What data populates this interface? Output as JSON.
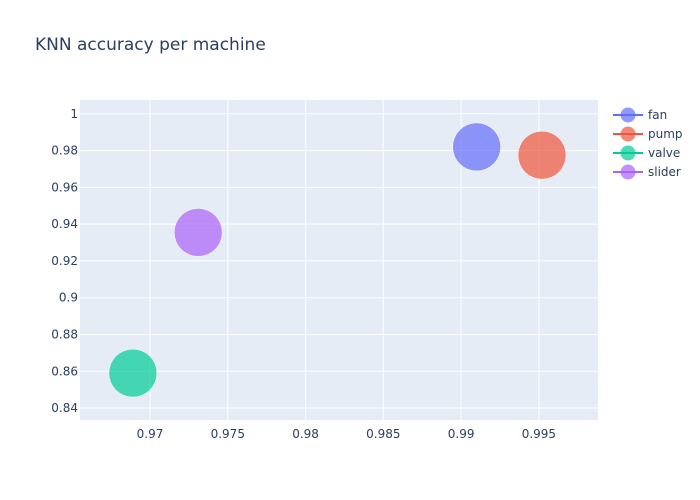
{
  "chart_data": {
    "type": "scatter",
    "title": "KNN accuracy per machine",
    "xlabel": "",
    "ylabel": "",
    "xlim": [
      0.9655,
      0.9988
    ],
    "ylim": [
      0.8335,
      1.0075
    ],
    "x_ticks": [
      0.97,
      0.975,
      0.98,
      0.985,
      0.99,
      0.995
    ],
    "x_tick_labels": [
      "0.97",
      "0.975",
      "0.98",
      "0.985",
      "0.99",
      "0.995"
    ],
    "y_ticks": [
      0.84,
      0.86,
      0.88,
      0.9,
      0.92,
      0.94,
      0.96,
      0.98,
      1.0
    ],
    "y_tick_labels": [
      "0.84",
      "0.86",
      "0.88",
      "0.9",
      "0.92",
      "0.94",
      "0.96",
      "0.98",
      "1"
    ],
    "grid": true,
    "legend_position": "top-right",
    "series": [
      {
        "name": "fan",
        "x": [
          0.991
        ],
        "y": [
          0.982
        ],
        "color": "#636efa"
      },
      {
        "name": "pump",
        "x": [
          0.9952
        ],
        "y": [
          0.9775
        ],
        "color": "#ef553b"
      },
      {
        "name": "valve",
        "x": [
          0.9689
        ],
        "y": [
          0.859
        ],
        "color": "#00cc96"
      },
      {
        "name": "slider",
        "x": [
          0.9731
        ],
        "y": [
          0.9355
        ],
        "color": "#ab63fa"
      }
    ]
  }
}
